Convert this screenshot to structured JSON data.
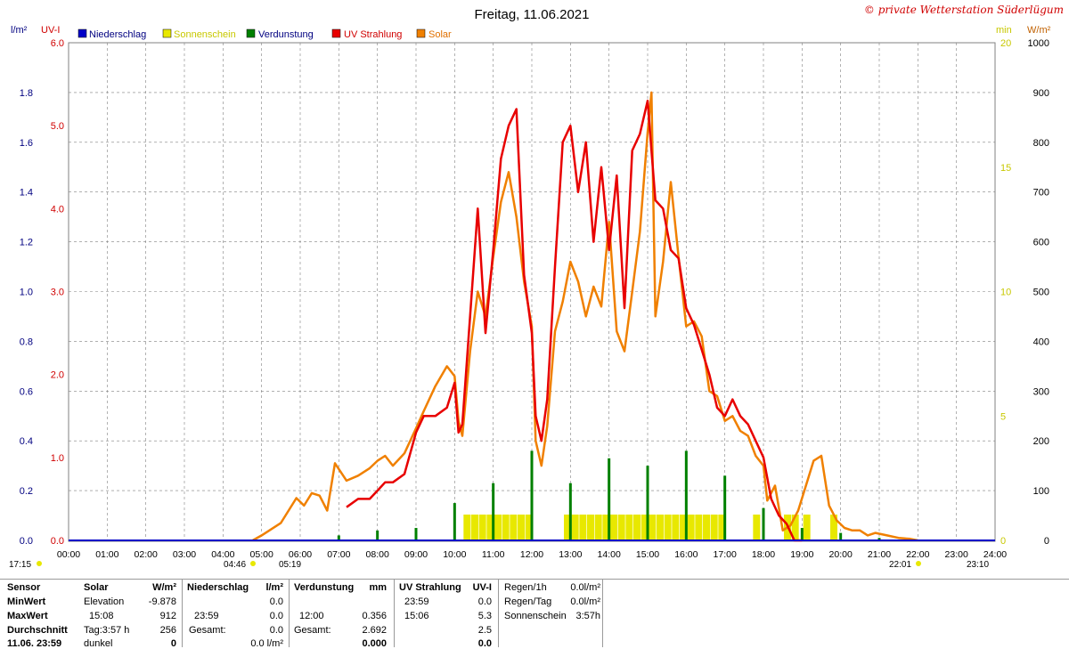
{
  "title": "Freitag, 11.06.2021",
  "credit": "© private Wetterstation Süderlügum",
  "colors": {
    "precip": "#0000c8",
    "sunshine": "#e8e800",
    "evap": "#008000",
    "uv": "#e80000",
    "solar": "#f08000",
    "left_axis": "#000080",
    "uv_axis": "#d00000",
    "min_axis": "#c8c800",
    "grid": "#808080"
  },
  "chart_data": {
    "type": "line",
    "title": "Freitag, 11.06.2021",
    "x_ticks": [
      "00:00",
      "01:00",
      "02:00",
      "03:00",
      "04:00",
      "05:00",
      "06:00",
      "07:00",
      "08:00",
      "09:00",
      "10:00",
      "11:00",
      "12:00",
      "13:00",
      "14:00",
      "15:00",
      "16:00",
      "17:00",
      "18:00",
      "19:00",
      "20:00",
      "21:00",
      "22:00",
      "23:00",
      "24:00"
    ],
    "axes": {
      "precip": {
        "label": "l/m²",
        "min": 0,
        "max": 2.0,
        "ticks": [
          "0.0",
          "0.2",
          "0.4",
          "0.6",
          "0.8",
          "1.0",
          "1.2",
          "1.4",
          "1.6",
          "1.8"
        ]
      },
      "uv": {
        "label": "UV-I",
        "min": 0,
        "max": 6.0,
        "ticks": [
          "0.0",
          "1.0",
          "2.0",
          "3.0",
          "4.0",
          "5.0",
          "6.0"
        ]
      },
      "sun_min": {
        "label": "min",
        "min": 0,
        "max": 20,
        "ticks": [
          "0",
          "5",
          "10",
          "15",
          "20"
        ]
      },
      "solar": {
        "label": "W/m²",
        "min": 0,
        "max": 1000,
        "ticks": [
          "0",
          "100",
          "200",
          "300",
          "400",
          "500",
          "600",
          "700",
          "800",
          "900",
          "1000"
        ]
      }
    },
    "legend": [
      "Niederschlag",
      "Sonnenschein",
      "Verdunstung",
      "UV Strahlung",
      "Solar"
    ],
    "series": [
      {
        "name": "Solar",
        "axis": "solar",
        "x_hours": [
          4.77,
          5.0,
          5.5,
          5.9,
          6.1,
          6.3,
          6.5,
          6.7,
          6.9,
          7.2,
          7.5,
          7.8,
          8.0,
          8.2,
          8.4,
          8.7,
          9.0,
          9.2,
          9.5,
          9.8,
          10.0,
          10.1,
          10.2,
          10.4,
          10.6,
          10.8,
          11.0,
          11.2,
          11.4,
          11.6,
          11.8,
          12.0,
          12.1,
          12.25,
          12.4,
          12.6,
          12.8,
          13.0,
          13.2,
          13.4,
          13.6,
          13.8,
          14.0,
          14.2,
          14.4,
          14.6,
          14.8,
          15.0,
          15.1,
          15.2,
          15.4,
          15.6,
          15.8,
          16.0,
          16.2,
          16.4,
          16.6,
          16.8,
          17.0,
          17.2,
          17.4,
          17.6,
          17.8,
          18.0,
          18.1,
          18.3,
          18.5,
          18.7,
          18.9,
          19.1,
          19.3,
          19.5,
          19.7,
          19.9,
          20.1,
          20.3,
          20.5,
          20.7,
          20.9,
          21.2,
          21.5,
          21.8,
          22.0
        ],
        "values": [
          0,
          10,
          35,
          85,
          70,
          95,
          90,
          60,
          155,
          120,
          130,
          145,
          160,
          170,
          150,
          175,
          225,
          260,
          310,
          350,
          330,
          240,
          210,
          380,
          500,
          450,
          570,
          680,
          740,
          650,
          520,
          430,
          200,
          150,
          230,
          420,
          480,
          560,
          520,
          450,
          510,
          470,
          640,
          420,
          380,
          500,
          620,
          820,
          900,
          450,
          560,
          720,
          570,
          430,
          440,
          410,
          300,
          290,
          240,
          250,
          220,
          210,
          170,
          150,
          80,
          110,
          20,
          30,
          60,
          110,
          160,
          170,
          70,
          40,
          25,
          20,
          20,
          10,
          15,
          10,
          5,
          3,
          0
        ]
      },
      {
        "name": "UV Strahlung",
        "axis": "uv",
        "x_hours": [
          7.2,
          7.5,
          7.8,
          8.0,
          8.2,
          8.4,
          8.7,
          9.0,
          9.2,
          9.5,
          9.8,
          10.0,
          10.1,
          10.2,
          10.4,
          10.6,
          10.8,
          11.0,
          11.2,
          11.4,
          11.6,
          11.8,
          12.0,
          12.1,
          12.25,
          12.4,
          12.6,
          12.8,
          13.0,
          13.2,
          13.4,
          13.6,
          13.8,
          14.0,
          14.2,
          14.4,
          14.6,
          14.8,
          15.0,
          15.1,
          15.2,
          15.4,
          15.6,
          15.8,
          16.0,
          16.2,
          16.4,
          16.6,
          16.8,
          17.0,
          17.2,
          17.4,
          17.6,
          17.8,
          18.0,
          18.2,
          18.4,
          18.6,
          18.8,
          19.0
        ],
        "values": [
          0.4,
          0.5,
          0.5,
          0.6,
          0.7,
          0.7,
          0.8,
          1.3,
          1.5,
          1.5,
          1.6,
          1.9,
          1.3,
          1.4,
          2.7,
          4.0,
          2.5,
          3.5,
          4.6,
          5.0,
          5.2,
          3.2,
          2.5,
          1.5,
          1.2,
          1.7,
          3.3,
          4.8,
          5.0,
          4.2,
          4.8,
          3.6,
          4.5,
          3.5,
          4.4,
          2.8,
          4.7,
          4.9,
          5.3,
          4.7,
          4.1,
          4.0,
          3.5,
          3.4,
          2.8,
          2.6,
          2.3,
          2.0,
          1.6,
          1.5,
          1.7,
          1.5,
          1.4,
          1.2,
          1.0,
          0.5,
          0.3,
          0.2,
          0.0,
          0.0
        ]
      },
      {
        "name": "Sonnenschein",
        "axis": "sun_min",
        "type": "bar",
        "x_hours": [
          10.3,
          10.5,
          10.7,
          10.9,
          11.1,
          11.3,
          11.5,
          11.7,
          11.9,
          12.9,
          13.1,
          13.3,
          13.5,
          13.7,
          13.9,
          14.1,
          14.3,
          14.5,
          14.7,
          14.9,
          15.1,
          15.3,
          15.5,
          15.7,
          15.9,
          16.1,
          16.3,
          16.5,
          16.7,
          16.9,
          17.8,
          18.6,
          18.8,
          19.1,
          19.8
        ],
        "values": [
          1,
          1,
          1,
          1,
          1,
          1,
          1,
          1,
          1,
          1,
          1,
          1,
          1,
          1,
          1,
          1,
          1,
          1,
          1,
          1,
          1,
          1,
          1,
          1,
          1,
          1,
          1,
          1,
          1,
          1,
          1,
          1,
          1,
          1,
          1
        ]
      },
      {
        "name": "Verdunstung",
        "axis": "precip",
        "type": "bar",
        "x_hours": [
          7.0,
          8.0,
          9.0,
          10.0,
          11.0,
          12.0,
          13.0,
          14.0,
          15.0,
          16.0,
          17.0,
          18.0,
          19.0,
          20.0,
          21.0
        ],
        "values": [
          0.02,
          0.04,
          0.05,
          0.15,
          0.23,
          0.36,
          0.23,
          0.33,
          0.3,
          0.36,
          0.26,
          0.13,
          0.05,
          0.03,
          0.01
        ]
      }
    ]
  },
  "below_axis": {
    "left_time": "17:15",
    "sunrise_1": "04:46",
    "sunrise_2": "05:19",
    "sunset_1": "22:01",
    "sunset_2": "23:10"
  },
  "stats": {
    "labels": {
      "sensor": "Sensor",
      "min": "MinWert",
      "max": "MaxWert",
      "avg": "Durchschnitt",
      "last": "11.06. 23:59"
    },
    "solar": {
      "title": "Solar",
      "unit": "W/m²",
      "elev_label": "Elevation",
      "elev": "-9.878",
      "max_time": "15:08",
      "max": "912",
      "day_label": "Tag:3:57 h",
      "avg": "256",
      "dark": "dunkel",
      "last": "0"
    },
    "precip": {
      "title": "Niederschlag",
      "unit": "l/m²",
      "min": "0.0",
      "max_time": "23:59",
      "max": "0.0",
      "total_label": "Gesamt:",
      "total": "0.0",
      "last": "0.0 l/m²"
    },
    "evap": {
      "title": "Verdunstung",
      "unit": "mm",
      "max_time": "12:00",
      "max": "0.356",
      "total_label": "Gesamt:",
      "total": "2.692",
      "last": "0.000"
    },
    "uv": {
      "title": "UV Strahlung",
      "unit": "UV-I",
      "min_time": "23:59",
      "min": "0.0",
      "max_time": "15:06",
      "max": "5.3",
      "avg": "2.5",
      "last": "0.0"
    },
    "rain": {
      "h_label": "Regen/1h",
      "h": "0.0l/m²",
      "day_label": "Regen/Tag",
      "day": "0.0l/m²",
      "sun_label": "Sonnenschein",
      "sun": "3:57h"
    }
  }
}
